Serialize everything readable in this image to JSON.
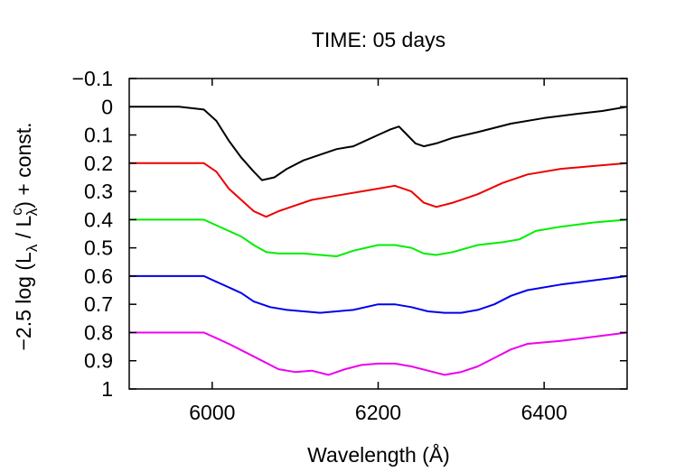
{
  "chart_data": {
    "type": "line",
    "title": "TIME: 05 days",
    "xlabel": "Wavelength (Å)",
    "ylabel": "−2.5 log (L",
    "ylabel_sub1": "λ",
    "ylabel_mid": " / L",
    "ylabel_sup": "c",
    "ylabel_sub2": "λ",
    "ylabel_end": ") + const.",
    "xlim": [
      5900,
      6500
    ],
    "ylim": [
      -0.1,
      1.0
    ],
    "y_inverted": true,
    "grid": false,
    "legend": "none",
    "x_ticks": [
      6000,
      6200,
      6400
    ],
    "x_tick_labels": [
      "6000",
      "6200",
      "6400"
    ],
    "y_ticks": [
      -0.1,
      0,
      0.1,
      0.2,
      0.3,
      0.4,
      0.5,
      0.6,
      0.7,
      0.8,
      0.9,
      1
    ],
    "y_tick_labels": [
      "−0.1",
      "0",
      "0.1",
      "0.2",
      "0.3",
      "0.4",
      "0.5",
      "0.6",
      "0.7",
      "0.8",
      "0.9",
      "1"
    ],
    "series": [
      {
        "color": "#000000",
        "points": [
          [
            5900,
            0.0
          ],
          [
            5960,
            0.0
          ],
          [
            5990,
            0.01
          ],
          [
            6005,
            0.05
          ],
          [
            6020,
            0.12
          ],
          [
            6035,
            0.18
          ],
          [
            6050,
            0.23
          ],
          [
            6060,
            0.26
          ],
          [
            6075,
            0.25
          ],
          [
            6090,
            0.22
          ],
          [
            6110,
            0.19
          ],
          [
            6130,
            0.17
          ],
          [
            6150,
            0.15
          ],
          [
            6170,
            0.14
          ],
          [
            6185,
            0.12
          ],
          [
            6200,
            0.1
          ],
          [
            6215,
            0.08
          ],
          [
            6225,
            0.07
          ],
          [
            6235,
            0.1
          ],
          [
            6245,
            0.13
          ],
          [
            6255,
            0.14
          ],
          [
            6270,
            0.13
          ],
          [
            6290,
            0.11
          ],
          [
            6320,
            0.09
          ],
          [
            6360,
            0.06
          ],
          [
            6400,
            0.04
          ],
          [
            6440,
            0.025
          ],
          [
            6470,
            0.015
          ],
          [
            6500,
            0.0
          ]
        ]
      },
      {
        "color": "#ee0000",
        "points": [
          [
            5900,
            0.2
          ],
          [
            5990,
            0.2
          ],
          [
            6005,
            0.23
          ],
          [
            6020,
            0.29
          ],
          [
            6035,
            0.33
          ],
          [
            6050,
            0.37
          ],
          [
            6065,
            0.39
          ],
          [
            6080,
            0.37
          ],
          [
            6100,
            0.35
          ],
          [
            6120,
            0.33
          ],
          [
            6140,
            0.32
          ],
          [
            6160,
            0.31
          ],
          [
            6180,
            0.3
          ],
          [
            6200,
            0.29
          ],
          [
            6220,
            0.28
          ],
          [
            6240,
            0.3
          ],
          [
            6255,
            0.34
          ],
          [
            6270,
            0.355
          ],
          [
            6290,
            0.34
          ],
          [
            6320,
            0.31
          ],
          [
            6350,
            0.27
          ],
          [
            6380,
            0.24
          ],
          [
            6420,
            0.22
          ],
          [
            6460,
            0.21
          ],
          [
            6500,
            0.2
          ]
        ]
      },
      {
        "color": "#00ee00",
        "points": [
          [
            5900,
            0.4
          ],
          [
            5990,
            0.4
          ],
          [
            6005,
            0.42
          ],
          [
            6020,
            0.44
          ],
          [
            6035,
            0.46
          ],
          [
            6050,
            0.49
          ],
          [
            6065,
            0.515
          ],
          [
            6080,
            0.52
          ],
          [
            6110,
            0.52
          ],
          [
            6130,
            0.525
          ],
          [
            6150,
            0.53
          ],
          [
            6170,
            0.51
          ],
          [
            6200,
            0.49
          ],
          [
            6220,
            0.49
          ],
          [
            6240,
            0.5
          ],
          [
            6255,
            0.52
          ],
          [
            6270,
            0.525
          ],
          [
            6290,
            0.515
          ],
          [
            6320,
            0.49
          ],
          [
            6350,
            0.48
          ],
          [
            6370,
            0.47
          ],
          [
            6390,
            0.44
          ],
          [
            6420,
            0.425
          ],
          [
            6460,
            0.41
          ],
          [
            6500,
            0.4
          ]
        ]
      },
      {
        "color": "#0000ee",
        "points": [
          [
            5900,
            0.6
          ],
          [
            5990,
            0.6
          ],
          [
            6005,
            0.62
          ],
          [
            6020,
            0.64
          ],
          [
            6035,
            0.66
          ],
          [
            6050,
            0.69
          ],
          [
            6070,
            0.71
          ],
          [
            6090,
            0.72
          ],
          [
            6110,
            0.725
          ],
          [
            6130,
            0.73
          ],
          [
            6150,
            0.725
          ],
          [
            6170,
            0.72
          ],
          [
            6200,
            0.7
          ],
          [
            6220,
            0.7
          ],
          [
            6240,
            0.71
          ],
          [
            6260,
            0.725
          ],
          [
            6280,
            0.73
          ],
          [
            6300,
            0.73
          ],
          [
            6320,
            0.72
          ],
          [
            6340,
            0.7
          ],
          [
            6360,
            0.67
          ],
          [
            6380,
            0.65
          ],
          [
            6420,
            0.63
          ],
          [
            6460,
            0.615
          ],
          [
            6500,
            0.6
          ]
        ]
      },
      {
        "color": "#ee00ee",
        "points": [
          [
            5900,
            0.8
          ],
          [
            5990,
            0.8
          ],
          [
            6005,
            0.82
          ],
          [
            6020,
            0.84
          ],
          [
            6040,
            0.87
          ],
          [
            6060,
            0.9
          ],
          [
            6080,
            0.93
          ],
          [
            6100,
            0.94
          ],
          [
            6120,
            0.935
          ],
          [
            6140,
            0.95
          ],
          [
            6160,
            0.93
          ],
          [
            6180,
            0.915
          ],
          [
            6200,
            0.91
          ],
          [
            6220,
            0.91
          ],
          [
            6240,
            0.92
          ],
          [
            6260,
            0.935
          ],
          [
            6280,
            0.95
          ],
          [
            6300,
            0.94
          ],
          [
            6320,
            0.92
          ],
          [
            6340,
            0.89
          ],
          [
            6360,
            0.86
          ],
          [
            6380,
            0.84
          ],
          [
            6420,
            0.83
          ],
          [
            6460,
            0.815
          ],
          [
            6500,
            0.8
          ]
        ]
      }
    ]
  }
}
